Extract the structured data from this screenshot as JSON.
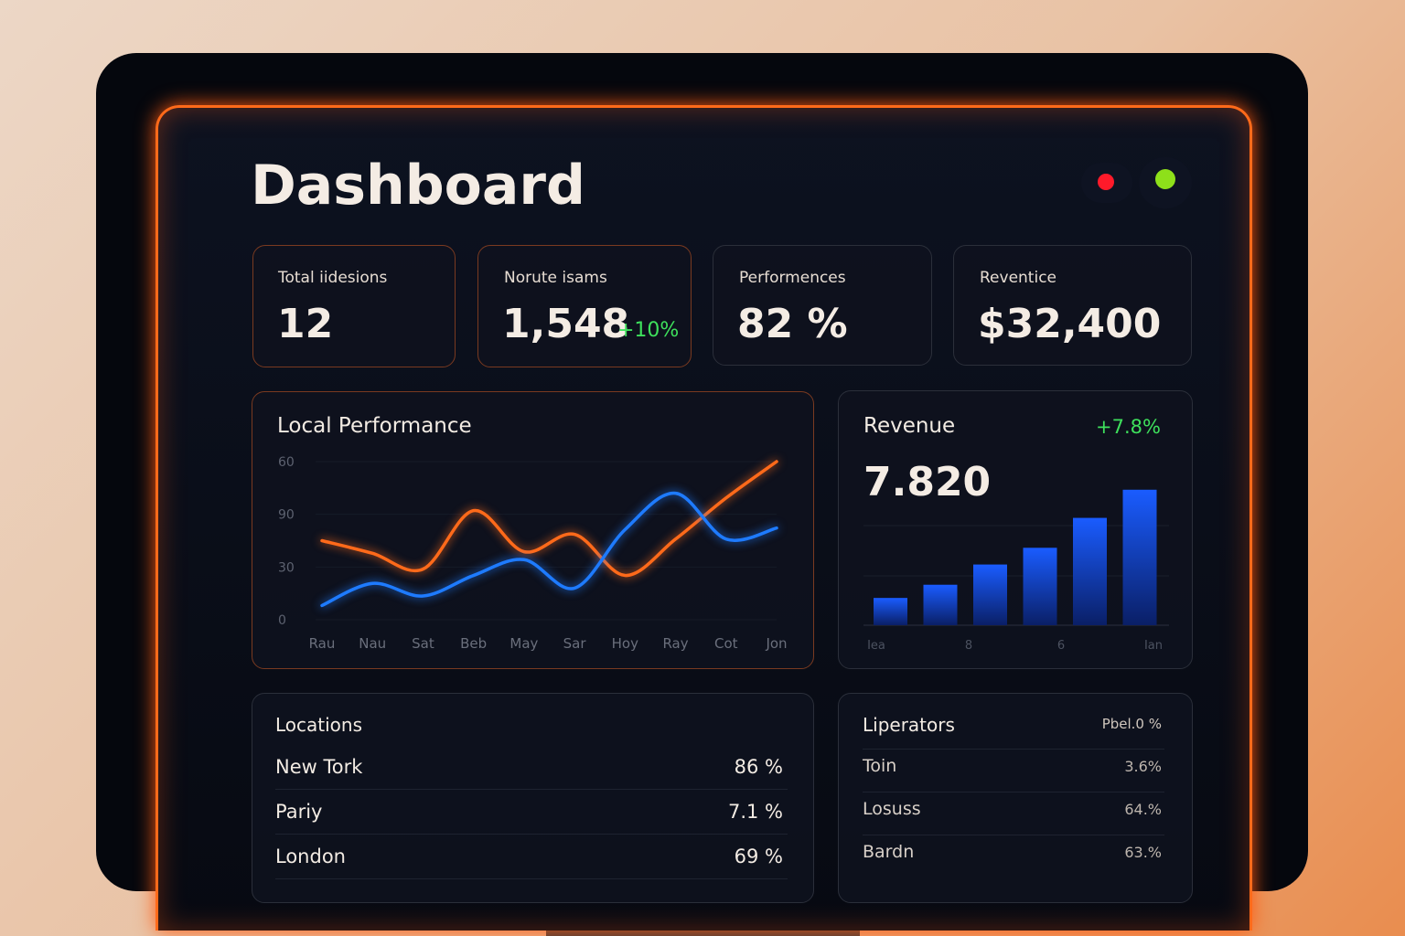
{
  "header": {
    "title": "Dashboard"
  },
  "kpis": [
    {
      "label": "Total iidesions",
      "value": "12"
    },
    {
      "label": "Norute isams",
      "value": "1,548",
      "change": "+10%"
    },
    {
      "label": "Performences",
      "value": "82 %"
    },
    {
      "label": "Reventice",
      "value": "$32,400"
    }
  ],
  "line_card": {
    "title": "Local Performance",
    "chart_data": {
      "type": "line",
      "y_labels": [
        "60",
        "90",
        "30",
        "0"
      ],
      "categories": [
        "Rau",
        "Nau",
        "Sat",
        "Beb",
        "May",
        "Sar",
        "Hoy",
        "Ray",
        "Cot",
        "Jon"
      ],
      "ylim": [
        0,
        100
      ],
      "series": [
        {
          "color": "#ff6a1a",
          "values": [
            50,
            42,
            32,
            69,
            43,
            54,
            28,
            51,
            77,
            100
          ]
        },
        {
          "color": "#1e7bff",
          "values": [
            9,
            23,
            15,
            28,
            38,
            20,
            57,
            80,
            51,
            58
          ]
        }
      ]
    }
  },
  "bar_card": {
    "title": "Revenue",
    "change": "+7.8%",
    "value": "7.820",
    "chart_data": {
      "type": "bar",
      "x_labels": [
        "Iea",
        "8",
        "6",
        "Ian"
      ],
      "ylim": [
        0,
        160
      ],
      "color": "#1a5cff",
      "values": [
        31,
        46,
        69,
        88,
        122,
        154
      ]
    }
  },
  "locations": {
    "title": "Locations",
    "rows": [
      [
        "New Tork",
        "86 %"
      ],
      [
        "Pariy",
        "7.1 %"
      ],
      [
        "London",
        "69 %"
      ]
    ]
  },
  "operators": {
    "title": "Liperators",
    "header_value": "Pbel.0 %",
    "rows": [
      [
        "Toin",
        "3.6%"
      ],
      [
        "Losuss",
        "64.%"
      ],
      [
        "Bardn",
        "63.%"
      ]
    ]
  }
}
